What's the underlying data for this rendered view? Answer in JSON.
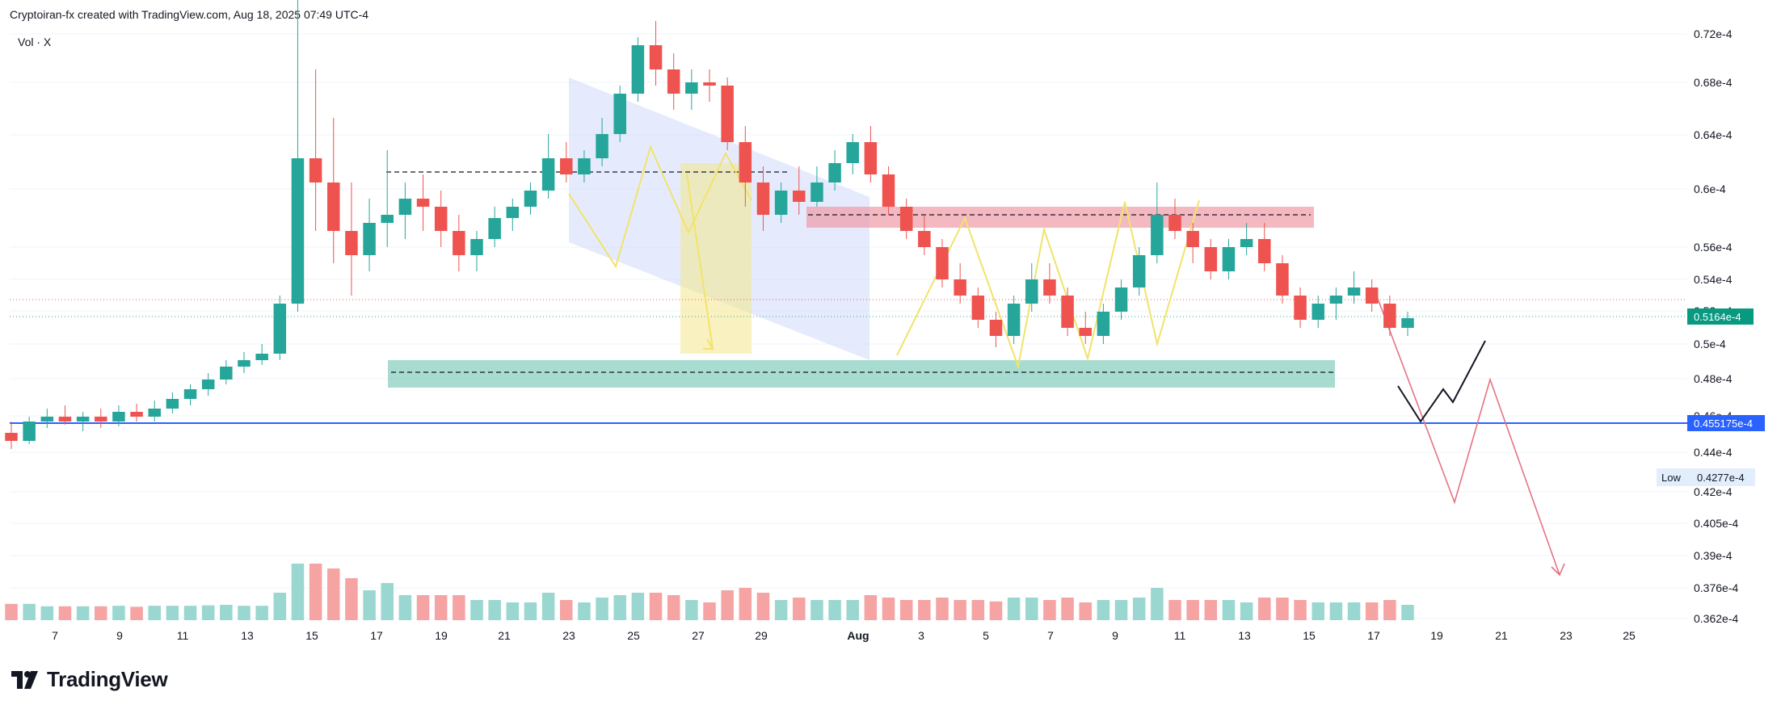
{
  "header": {
    "attribution": "Cryptoiran-fx created with TradingView.com, Aug 18, 2025 07:49 UTC-4",
    "vol_label": "Vol · X"
  },
  "brand": {
    "name": "TradingView",
    "icon": "tradingview-logo-icon"
  },
  "colors": {
    "bull": "#26a69a",
    "bear": "#ef5350",
    "vol_bull": "#9ad7d0",
    "vol_bear": "#f5a3a3",
    "support_line": "#2962ff",
    "grid": "#f0f3fa"
  },
  "chart_data": {
    "type": "candlestick",
    "y_axis_ticks": [
      "0.72e-4",
      "0.68e-4",
      "0.64e-4",
      "0.6e-4",
      "0.56e-4",
      "0.54e-4",
      "0.52e-4",
      "0.5e-4",
      "0.48e-4",
      "0.46e-4",
      "0.44e-4",
      "0.42e-4",
      "0.405e-4",
      "0.39e-4",
      "0.376e-4",
      "0.362e-4"
    ],
    "x_axis_ticks": [
      "7",
      "9",
      "11",
      "13",
      "15",
      "17",
      "19",
      "21",
      "23",
      "25",
      "27",
      "29",
      "Aug",
      "3",
      "5",
      "7",
      "9",
      "11",
      "13",
      "15",
      "17",
      "19",
      "21",
      "23",
      "25"
    ],
    "price_labels": {
      "current": "0.5164e-4",
      "support": "0.455175e-4",
      "low_label": "Low",
      "low_value": "0.4277e-4"
    },
    "ohlc_sample": [
      {
        "o": 0.445,
        "h": 0.452,
        "l": 0.435,
        "c": 0.44
      },
      {
        "o": 0.44,
        "h": 0.455,
        "l": 0.438,
        "c": 0.452
      },
      {
        "o": 0.452,
        "h": 0.46,
        "l": 0.448,
        "c": 0.455
      },
      {
        "o": 0.455,
        "h": 0.462,
        "l": 0.45,
        "c": 0.452
      },
      {
        "o": 0.452,
        "h": 0.458,
        "l": 0.446,
        "c": 0.455
      },
      {
        "o": 0.455,
        "h": 0.46,
        "l": 0.448,
        "c": 0.452
      },
      {
        "o": 0.452,
        "h": 0.462,
        "l": 0.449,
        "c": 0.458
      },
      {
        "o": 0.458,
        "h": 0.463,
        "l": 0.452,
        "c": 0.455
      },
      {
        "o": 0.455,
        "h": 0.465,
        "l": 0.452,
        "c": 0.46
      },
      {
        "o": 0.46,
        "h": 0.47,
        "l": 0.457,
        "c": 0.466
      },
      {
        "o": 0.466,
        "h": 0.475,
        "l": 0.462,
        "c": 0.472
      },
      {
        "o": 0.472,
        "h": 0.482,
        "l": 0.468,
        "c": 0.478
      },
      {
        "o": 0.478,
        "h": 0.49,
        "l": 0.475,
        "c": 0.486
      },
      {
        "o": 0.486,
        "h": 0.495,
        "l": 0.482,
        "c": 0.49
      },
      {
        "o": 0.49,
        "h": 0.5,
        "l": 0.487,
        "c": 0.494
      },
      {
        "o": 0.494,
        "h": 0.53,
        "l": 0.49,
        "c": 0.525
      },
      {
        "o": 0.525,
        "h": 0.72,
        "l": 0.52,
        "c": 0.615
      },
      {
        "o": 0.615,
        "h": 0.67,
        "l": 0.57,
        "c": 0.6
      },
      {
        "o": 0.6,
        "h": 0.64,
        "l": 0.55,
        "c": 0.57
      },
      {
        "o": 0.57,
        "h": 0.6,
        "l": 0.53,
        "c": 0.555
      },
      {
        "o": 0.555,
        "h": 0.59,
        "l": 0.545,
        "c": 0.575
      },
      {
        "o": 0.575,
        "h": 0.62,
        "l": 0.56,
        "c": 0.58
      },
      {
        "o": 0.58,
        "h": 0.6,
        "l": 0.565,
        "c": 0.59
      },
      {
        "o": 0.59,
        "h": 0.605,
        "l": 0.57,
        "c": 0.585
      },
      {
        "o": 0.585,
        "h": 0.595,
        "l": 0.56,
        "c": 0.57
      },
      {
        "o": 0.57,
        "h": 0.58,
        "l": 0.545,
        "c": 0.555
      },
      {
        "o": 0.555,
        "h": 0.57,
        "l": 0.545,
        "c": 0.565
      },
      {
        "o": 0.565,
        "h": 0.585,
        "l": 0.56,
        "c": 0.578
      },
      {
        "o": 0.578,
        "h": 0.59,
        "l": 0.57,
        "c": 0.585
      },
      {
        "o": 0.585,
        "h": 0.6,
        "l": 0.58,
        "c": 0.595
      },
      {
        "o": 0.595,
        "h": 0.63,
        "l": 0.59,
        "c": 0.615
      },
      {
        "o": 0.615,
        "h": 0.625,
        "l": 0.6,
        "c": 0.605
      },
      {
        "o": 0.605,
        "h": 0.62,
        "l": 0.6,
        "c": 0.615
      },
      {
        "o": 0.615,
        "h": 0.64,
        "l": 0.61,
        "c": 0.63
      },
      {
        "o": 0.63,
        "h": 0.66,
        "l": 0.625,
        "c": 0.655
      },
      {
        "o": 0.655,
        "h": 0.69,
        "l": 0.65,
        "c": 0.685
      },
      {
        "o": 0.685,
        "h": 0.7,
        "l": 0.66,
        "c": 0.67
      },
      {
        "o": 0.67,
        "h": 0.68,
        "l": 0.645,
        "c": 0.655
      },
      {
        "o": 0.655,
        "h": 0.67,
        "l": 0.645,
        "c": 0.662
      },
      {
        "o": 0.662,
        "h": 0.67,
        "l": 0.65,
        "c": 0.66
      },
      {
        "o": 0.66,
        "h": 0.665,
        "l": 0.62,
        "c": 0.625
      },
      {
        "o": 0.625,
        "h": 0.635,
        "l": 0.585,
        "c": 0.6
      },
      {
        "o": 0.6,
        "h": 0.61,
        "l": 0.57,
        "c": 0.58
      },
      {
        "o": 0.58,
        "h": 0.6,
        "l": 0.575,
        "c": 0.595
      },
      {
        "o": 0.595,
        "h": 0.61,
        "l": 0.58,
        "c": 0.588
      },
      {
        "o": 0.588,
        "h": 0.61,
        "l": 0.585,
        "c": 0.6
      },
      {
        "o": 0.6,
        "h": 0.62,
        "l": 0.595,
        "c": 0.612
      },
      {
        "o": 0.612,
        "h": 0.63,
        "l": 0.605,
        "c": 0.625
      },
      {
        "o": 0.625,
        "h": 0.635,
        "l": 0.6,
        "c": 0.605
      },
      {
        "o": 0.605,
        "h": 0.61,
        "l": 0.58,
        "c": 0.585
      },
      {
        "o": 0.585,
        "h": 0.59,
        "l": 0.565,
        "c": 0.57
      },
      {
        "o": 0.57,
        "h": 0.58,
        "l": 0.555,
        "c": 0.56
      },
      {
        "o": 0.56,
        "h": 0.565,
        "l": 0.535,
        "c": 0.54
      },
      {
        "o": 0.54,
        "h": 0.55,
        "l": 0.525,
        "c": 0.53
      },
      {
        "o": 0.53,
        "h": 0.535,
        "l": 0.51,
        "c": 0.515
      },
      {
        "o": 0.515,
        "h": 0.52,
        "l": 0.498,
        "c": 0.505
      },
      {
        "o": 0.505,
        "h": 0.53,
        "l": 0.5,
        "c": 0.525
      },
      {
        "o": 0.525,
        "h": 0.55,
        "l": 0.52,
        "c": 0.54
      },
      {
        "o": 0.54,
        "h": 0.55,
        "l": 0.525,
        "c": 0.53
      },
      {
        "o": 0.53,
        "h": 0.535,
        "l": 0.505,
        "c": 0.51
      },
      {
        "o": 0.51,
        "h": 0.52,
        "l": 0.5,
        "c": 0.505
      },
      {
        "o": 0.505,
        "h": 0.525,
        "l": 0.5,
        "c": 0.52
      },
      {
        "o": 0.52,
        "h": 0.54,
        "l": 0.515,
        "c": 0.535
      },
      {
        "o": 0.535,
        "h": 0.56,
        "l": 0.53,
        "c": 0.555
      },
      {
        "o": 0.555,
        "h": 0.6,
        "l": 0.55,
        "c": 0.58
      },
      {
        "o": 0.58,
        "h": 0.59,
        "l": 0.565,
        "c": 0.57
      },
      {
        "o": 0.57,
        "h": 0.575,
        "l": 0.55,
        "c": 0.56
      },
      {
        "o": 0.56,
        "h": 0.565,
        "l": 0.54,
        "c": 0.545
      },
      {
        "o": 0.545,
        "h": 0.565,
        "l": 0.54,
        "c": 0.56
      },
      {
        "o": 0.56,
        "h": 0.575,
        "l": 0.555,
        "c": 0.565
      },
      {
        "o": 0.565,
        "h": 0.575,
        "l": 0.545,
        "c": 0.55
      },
      {
        "o": 0.55,
        "h": 0.555,
        "l": 0.525,
        "c": 0.53
      },
      {
        "o": 0.53,
        "h": 0.535,
        "l": 0.51,
        "c": 0.515
      },
      {
        "o": 0.515,
        "h": 0.53,
        "l": 0.51,
        "c": 0.525
      },
      {
        "o": 0.525,
        "h": 0.535,
        "l": 0.515,
        "c": 0.53
      },
      {
        "o": 0.53,
        "h": 0.545,
        "l": 0.525,
        "c": 0.535
      },
      {
        "o": 0.535,
        "h": 0.54,
        "l": 0.52,
        "c": 0.525
      },
      {
        "o": 0.525,
        "h": 0.53,
        "l": 0.505,
        "c": 0.51
      },
      {
        "o": 0.51,
        "h": 0.52,
        "l": 0.505,
        "c": 0.516
      }
    ]
  },
  "drawings": {
    "support_level_label": "0.455175e-4"
  }
}
